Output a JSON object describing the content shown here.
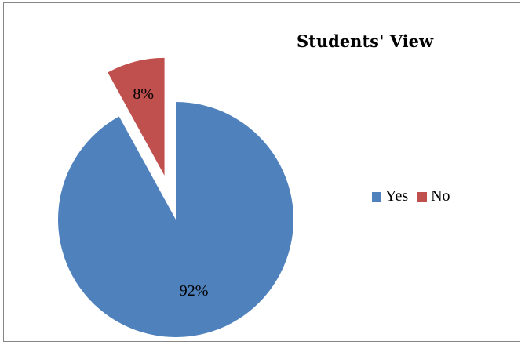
{
  "chart_data": {
    "type": "pie",
    "title": "Students' View",
    "categories": [
      "Yes",
      "No"
    ],
    "values": [
      92,
      8
    ],
    "labels": [
      "92%",
      "8%"
    ],
    "colors": [
      "#4f81bd",
      "#c0504d"
    ],
    "exploded": "No",
    "legend": "right"
  }
}
